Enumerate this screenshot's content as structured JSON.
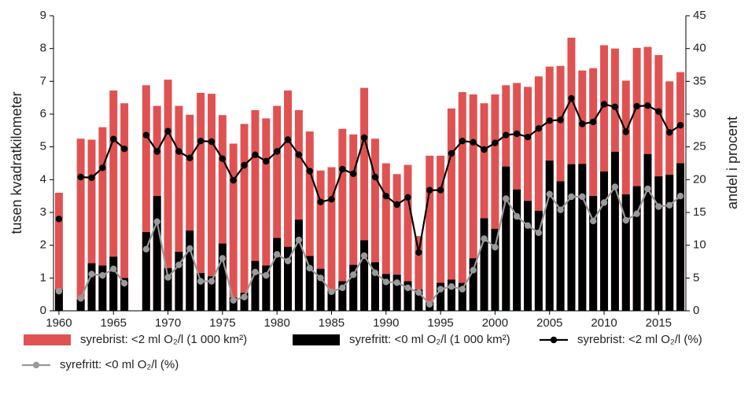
{
  "chart_data": {
    "type": "bar",
    "x": [
      1960,
      1961,
      1962,
      1963,
      1964,
      1965,
      1966,
      1967,
      1968,
      1969,
      1970,
      1971,
      1972,
      1973,
      1974,
      1975,
      1976,
      1977,
      1978,
      1979,
      1980,
      1981,
      1982,
      1983,
      1984,
      1985,
      1986,
      1987,
      1988,
      1989,
      1990,
      1991,
      1992,
      1993,
      1994,
      1995,
      1996,
      1997,
      1998,
      1999,
      2000,
      2001,
      2002,
      2003,
      2004,
      2005,
      2006,
      2007,
      2008,
      2009,
      2010,
      2011,
      2012,
      2013,
      2014,
      2015,
      2016,
      2017
    ],
    "series": [
      {
        "name": "syrebrist: <2 ml O₂/l (1 000 km²)",
        "type": "bar",
        "color": "#e05252",
        "values": [
          3.6,
          null,
          5.25,
          5.22,
          5.6,
          6.72,
          6.33,
          null,
          6.88,
          6.25,
          7.05,
          6.25,
          5.98,
          6.65,
          6.62,
          5.97,
          5.1,
          5.7,
          6.12,
          5.87,
          6.25,
          6.72,
          6.12,
          5.47,
          4.28,
          4.38,
          5.55,
          5.38,
          6.8,
          5.25,
          4.5,
          4.17,
          4.45,
          2.28,
          4.73,
          4.73,
          6.17,
          6.67,
          6.6,
          6.33,
          6.6,
          6.88,
          6.95,
          6.83,
          7.15,
          7.45,
          7.47,
          8.33,
          7.33,
          7.4,
          8.1,
          8.0,
          7.02,
          8.02,
          8.05,
          7.8,
          7.0,
          7.28
        ]
      },
      {
        "name": "syrefritt: <0 ml O₂/l (1 000 km²)",
        "type": "bar",
        "color": "#000000",
        "values": [
          0.65,
          null,
          0.35,
          1.45,
          1.38,
          1.65,
          1.0,
          null,
          2.4,
          3.5,
          1.3,
          1.8,
          2.45,
          1.15,
          1.05,
          2.05,
          0.4,
          0.55,
          1.52,
          1.38,
          2.22,
          1.95,
          2.78,
          1.67,
          1.28,
          0.6,
          0.9,
          1.4,
          2.15,
          1.48,
          1.12,
          1.1,
          0.9,
          0.65,
          0.25,
          0.85,
          0.95,
          0.85,
          1.6,
          2.82,
          2.5,
          4.4,
          3.7,
          3.35,
          3.05,
          4.58,
          3.95,
          4.47,
          4.48,
          3.5,
          4.25,
          4.85,
          3.55,
          3.8,
          4.78,
          4.1,
          4.15,
          4.5
        ]
      },
      {
        "name": "syrebrist: <2 ml O₂/l (%)",
        "type": "line",
        "axis": "y2",
        "color": "#000000",
        "values": [
          14,
          null,
          20.4,
          20.3,
          21.8,
          26.2,
          24.7,
          null,
          26.8,
          24.3,
          27.4,
          24.3,
          23.3,
          25.9,
          25.8,
          23.2,
          19.9,
          22.2,
          23.8,
          22.8,
          24.3,
          26.1,
          23.8,
          21.3,
          16.6,
          17.0,
          21.6,
          20.9,
          26.4,
          20.4,
          17.5,
          16.2,
          17.3,
          8.9,
          18.4,
          18.4,
          24.0,
          25.9,
          25.7,
          24.6,
          25.6,
          26.8,
          27.0,
          26.5,
          27.8,
          29.0,
          29.1,
          32.4,
          28.5,
          28.8,
          31.5,
          31.1,
          27.3,
          31.2,
          31.3,
          30.4,
          27.2,
          28.3
        ]
      },
      {
        "name": "syrefritt: <0 ml O₂/l (%)",
        "type": "line",
        "axis": "y2",
        "color": "#999999",
        "values": [
          3,
          null,
          1.9,
          5.6,
          5.4,
          6.4,
          4.2,
          null,
          9.4,
          13.6,
          5.1,
          7.0,
          9.5,
          4.5,
          4.5,
          8.0,
          1.6,
          2.1,
          5.9,
          5.4,
          8.6,
          7.6,
          10.8,
          6.5,
          5.0,
          2.9,
          3.5,
          5.5,
          8.4,
          5.8,
          4.4,
          4.3,
          3.5,
          2.8,
          1.0,
          3.3,
          3.7,
          3.3,
          6.2,
          11.0,
          9.7,
          17.1,
          14.4,
          13.0,
          11.9,
          17.8,
          15.4,
          17.4,
          17.4,
          13.7,
          16.5,
          18.9,
          13.8,
          14.8,
          18.6,
          15.9,
          16.1,
          17.5
        ]
      }
    ],
    "y_label": "tusen kvadratkilometer",
    "y2_label": "andel i procent",
    "xlim": [
      1959.5,
      2017.5
    ],
    "xticks": [
      1960,
      1965,
      1970,
      1975,
      1980,
      1985,
      1990,
      1995,
      2000,
      2005,
      2010,
      2015
    ],
    "ylim": [
      0,
      9
    ],
    "yticks": [
      0,
      1,
      2,
      3,
      4,
      5,
      6,
      7,
      8,
      9
    ],
    "y2lim": [
      0,
      45
    ],
    "y2ticks": [
      0,
      5,
      10,
      15,
      20,
      25,
      30,
      35,
      40,
      45
    ],
    "grid": false
  }
}
